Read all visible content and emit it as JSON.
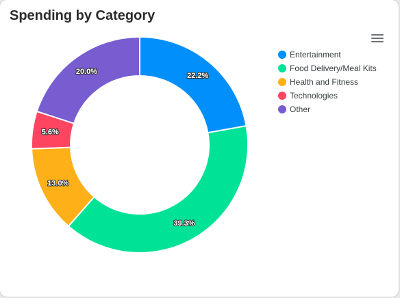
{
  "card": {
    "title": "Spending by Category"
  },
  "toolbar": {
    "menu_icon": "hamburger-menu-icon"
  },
  "chart_data": {
    "type": "pie",
    "variant": "donut",
    "title": "Spending by Category",
    "categories": [
      "Entertainment",
      "Food Delivery/Meal Kits",
      "Health and Fitness",
      "Technologies",
      "Other"
    ],
    "values": [
      22.2,
      39.3,
      13.0,
      5.6,
      20.0
    ],
    "labels": [
      "22.2%",
      "39.3%",
      "13.0%",
      "5.6%",
      "20.0%"
    ],
    "colors": [
      "#008ffb",
      "#00e396",
      "#feb019",
      "#ff4560",
      "#775dd0"
    ],
    "legend_position": "top-right"
  }
}
